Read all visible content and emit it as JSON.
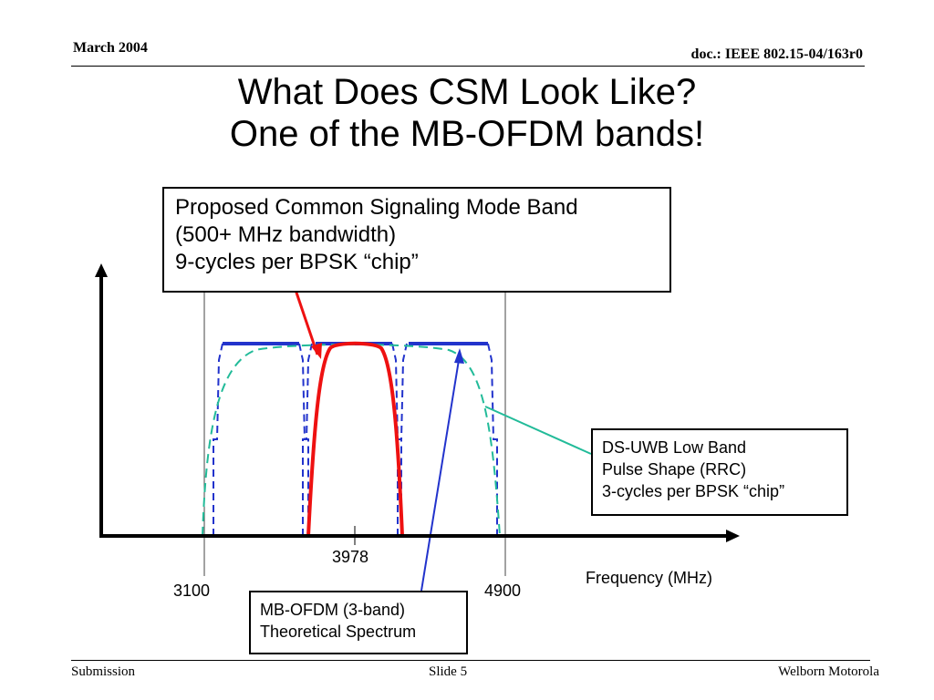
{
  "header": {
    "date": "March 2004",
    "doc": "doc.: IEEE 802.15-04/163r0"
  },
  "title": {
    "line1": "What Does CSM Look Like?",
    "line2": "One of the MB-OFDM bands!"
  },
  "callouts": {
    "csm": [
      "Proposed Common Signaling Mode Band",
      "(500+ MHz bandwidth)",
      "9-cycles per BPSK “chip”"
    ],
    "ds": [
      "DS-UWB Low Band",
      "Pulse Shape (RRC)",
      "3-cycles per BPSK “chip”"
    ],
    "mb": [
      "MB-OFDM (3-band)",
      "Theoretical Spectrum"
    ]
  },
  "axis": {
    "ticks": [
      "3100",
      "3978",
      "4900"
    ],
    "xlabel": "Frequency (MHz)"
  },
  "colors": {
    "csm": "#ee1111",
    "mb": "#2233cc",
    "ds": "#22bb99",
    "axis": "#000000"
  },
  "footer": {
    "left": "Submission",
    "center": "Slide 5",
    "right": "Welborn Motorola"
  }
}
